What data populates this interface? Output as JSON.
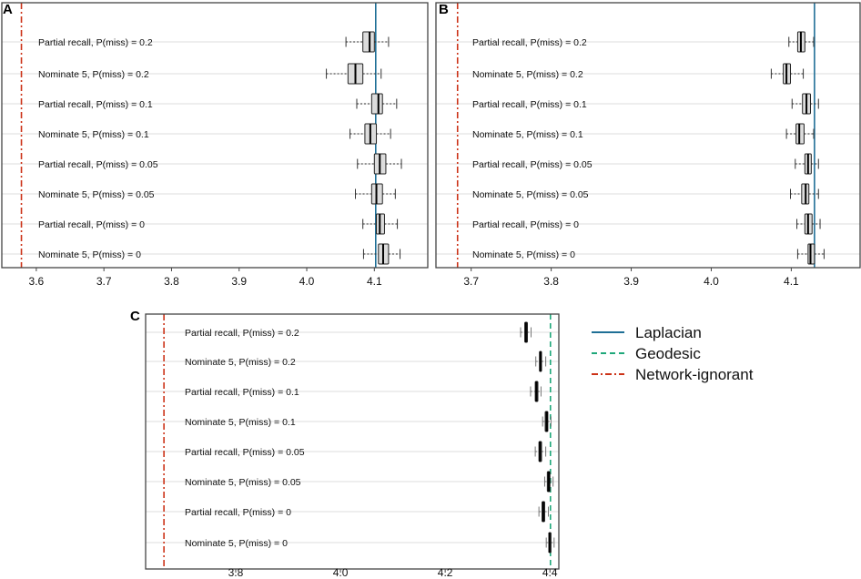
{
  "chart_data": [
    {
      "type": "boxplot",
      "panel": "A",
      "row_labels": [
        "Partial recall, P(miss) = 0.2",
        "Nominate 5, P(miss) = 0.2",
        "Partial recall, P(miss) = 0.1",
        "Nominate 5, P(miss) = 0.1",
        "Partial recall, P(miss) = 0.05",
        "Nominate 5, P(miss) = 0.05",
        "Partial recall, P(miss) = 0",
        "Nominate 5, P(miss) = 0"
      ],
      "boxes": [
        [
          4.058,
          4.083,
          4.093,
          4.1,
          4.121
        ],
        [
          4.029,
          4.061,
          4.072,
          4.083,
          4.11
        ],
        [
          4.074,
          4.096,
          4.106,
          4.112,
          4.133
        ],
        [
          4.064,
          4.086,
          4.094,
          4.103,
          4.124
        ],
        [
          4.075,
          4.1,
          4.108,
          4.117,
          4.14
        ],
        [
          4.072,
          4.096,
          4.103,
          4.112,
          4.131
        ],
        [
          4.083,
          4.103,
          4.108,
          4.115,
          4.134
        ],
        [
          4.084,
          4.106,
          4.113,
          4.121,
          4.138
        ]
      ],
      "reference_lines": {
        "Laplacian": 4.102,
        "Network-ignorant": 3.578
      },
      "xticks": [
        "3.6",
        "3.7",
        "3.8",
        "3.9",
        "4.0",
        "4.1"
      ],
      "xtick_values": [
        3.6,
        3.7,
        3.8,
        3.9,
        4.0,
        4.1
      ],
      "xlim": [
        3.549,
        4.179
      ],
      "box_style": "light"
    },
    {
      "type": "boxplot",
      "panel": "B",
      "row_labels": [
        "Partial recall, P(miss) = 0.2",
        "Nominate 5, P(miss) = 0.2",
        "Partial recall, P(miss) = 0.1",
        "Nominate 5, P(miss) = 0.1",
        "Partial recall, P(miss) = 0.05",
        "Nominate 5, P(miss) = 0.05",
        "Partial recall, P(miss) = 0",
        "Nominate 5, P(miss) = 0"
      ],
      "boxes": [
        [
          4.097,
          4.108,
          4.112,
          4.117,
          4.128
        ],
        [
          4.075,
          4.09,
          4.094,
          4.099,
          4.115
        ],
        [
          4.101,
          4.114,
          4.119,
          4.124,
          4.134
        ],
        [
          4.094,
          4.106,
          4.11,
          4.116,
          4.128
        ],
        [
          4.105,
          4.117,
          4.121,
          4.125,
          4.134
        ],
        [
          4.099,
          4.113,
          4.118,
          4.122,
          4.134
        ],
        [
          4.107,
          4.117,
          4.121,
          4.126,
          4.136
        ],
        [
          4.108,
          4.121,
          4.124,
          4.129,
          4.141
        ]
      ],
      "reference_lines": {
        "Laplacian": 4.129,
        "Network-ignorant": 3.683
      },
      "xticks": [
        "3.7",
        "3.8",
        "3.9",
        "4.0",
        "4.1"
      ],
      "xtick_values": [
        3.7,
        3.8,
        3.9,
        4.0,
        4.1
      ],
      "xlim": [
        3.656,
        4.186
      ],
      "box_style": "light"
    },
    {
      "type": "boxplot",
      "panel": "C",
      "row_labels": [
        "Partial recall, P(miss) = 0.2",
        "Nominate 5, P(miss) = 0.2",
        "Partial recall, P(miss) = 0.1",
        "Nominate 5, P(miss) = 0.1",
        "Partial recall, P(miss) = 0.05",
        "Nominate 5, P(miss) = 0.05",
        "Partial recall, P(miss) = 0",
        "Nominate 5, P(miss) = 0"
      ],
      "boxes": [
        [
          4.344,
          4.352,
          4.354,
          4.357,
          4.364
        ],
        [
          4.373,
          4.38,
          4.382,
          4.384,
          4.392
        ],
        [
          4.363,
          4.372,
          4.374,
          4.377,
          4.383
        ],
        [
          4.386,
          4.391,
          4.394,
          4.396,
          4.402
        ],
        [
          4.372,
          4.379,
          4.381,
          4.384,
          4.392
        ],
        [
          4.39,
          4.395,
          4.398,
          4.4,
          4.406
        ],
        [
          4.379,
          4.385,
          4.387,
          4.39,
          4.397
        ],
        [
          4.393,
          4.398,
          4.399,
          4.402,
          4.408
        ]
      ],
      "reference_lines": {
        "Geodesic": 4.401,
        "Network-ignorant": 3.663
      },
      "xticks": [
        "3.8",
        "4.0",
        "4.2",
        "4.4"
      ],
      "xtick_values": [
        3.8,
        4.0,
        4.2,
        4.4
      ],
      "xlim": [
        3.628,
        4.417
      ],
      "box_style": "dark"
    }
  ],
  "legend": [
    {
      "label": "Laplacian",
      "color": "#1f6f96",
      "dash": "solid"
    },
    {
      "label": "Geodesic",
      "color": "#1fa87a",
      "dash": "dashed"
    },
    {
      "label": "Network-ignorant",
      "color": "#cc3318",
      "dash": "dashdot"
    }
  ],
  "line_colors": {
    "Laplacian": "#1f6f96",
    "Geodesic": "#1fa87a",
    "Network-ignorant": "#cc3318"
  }
}
